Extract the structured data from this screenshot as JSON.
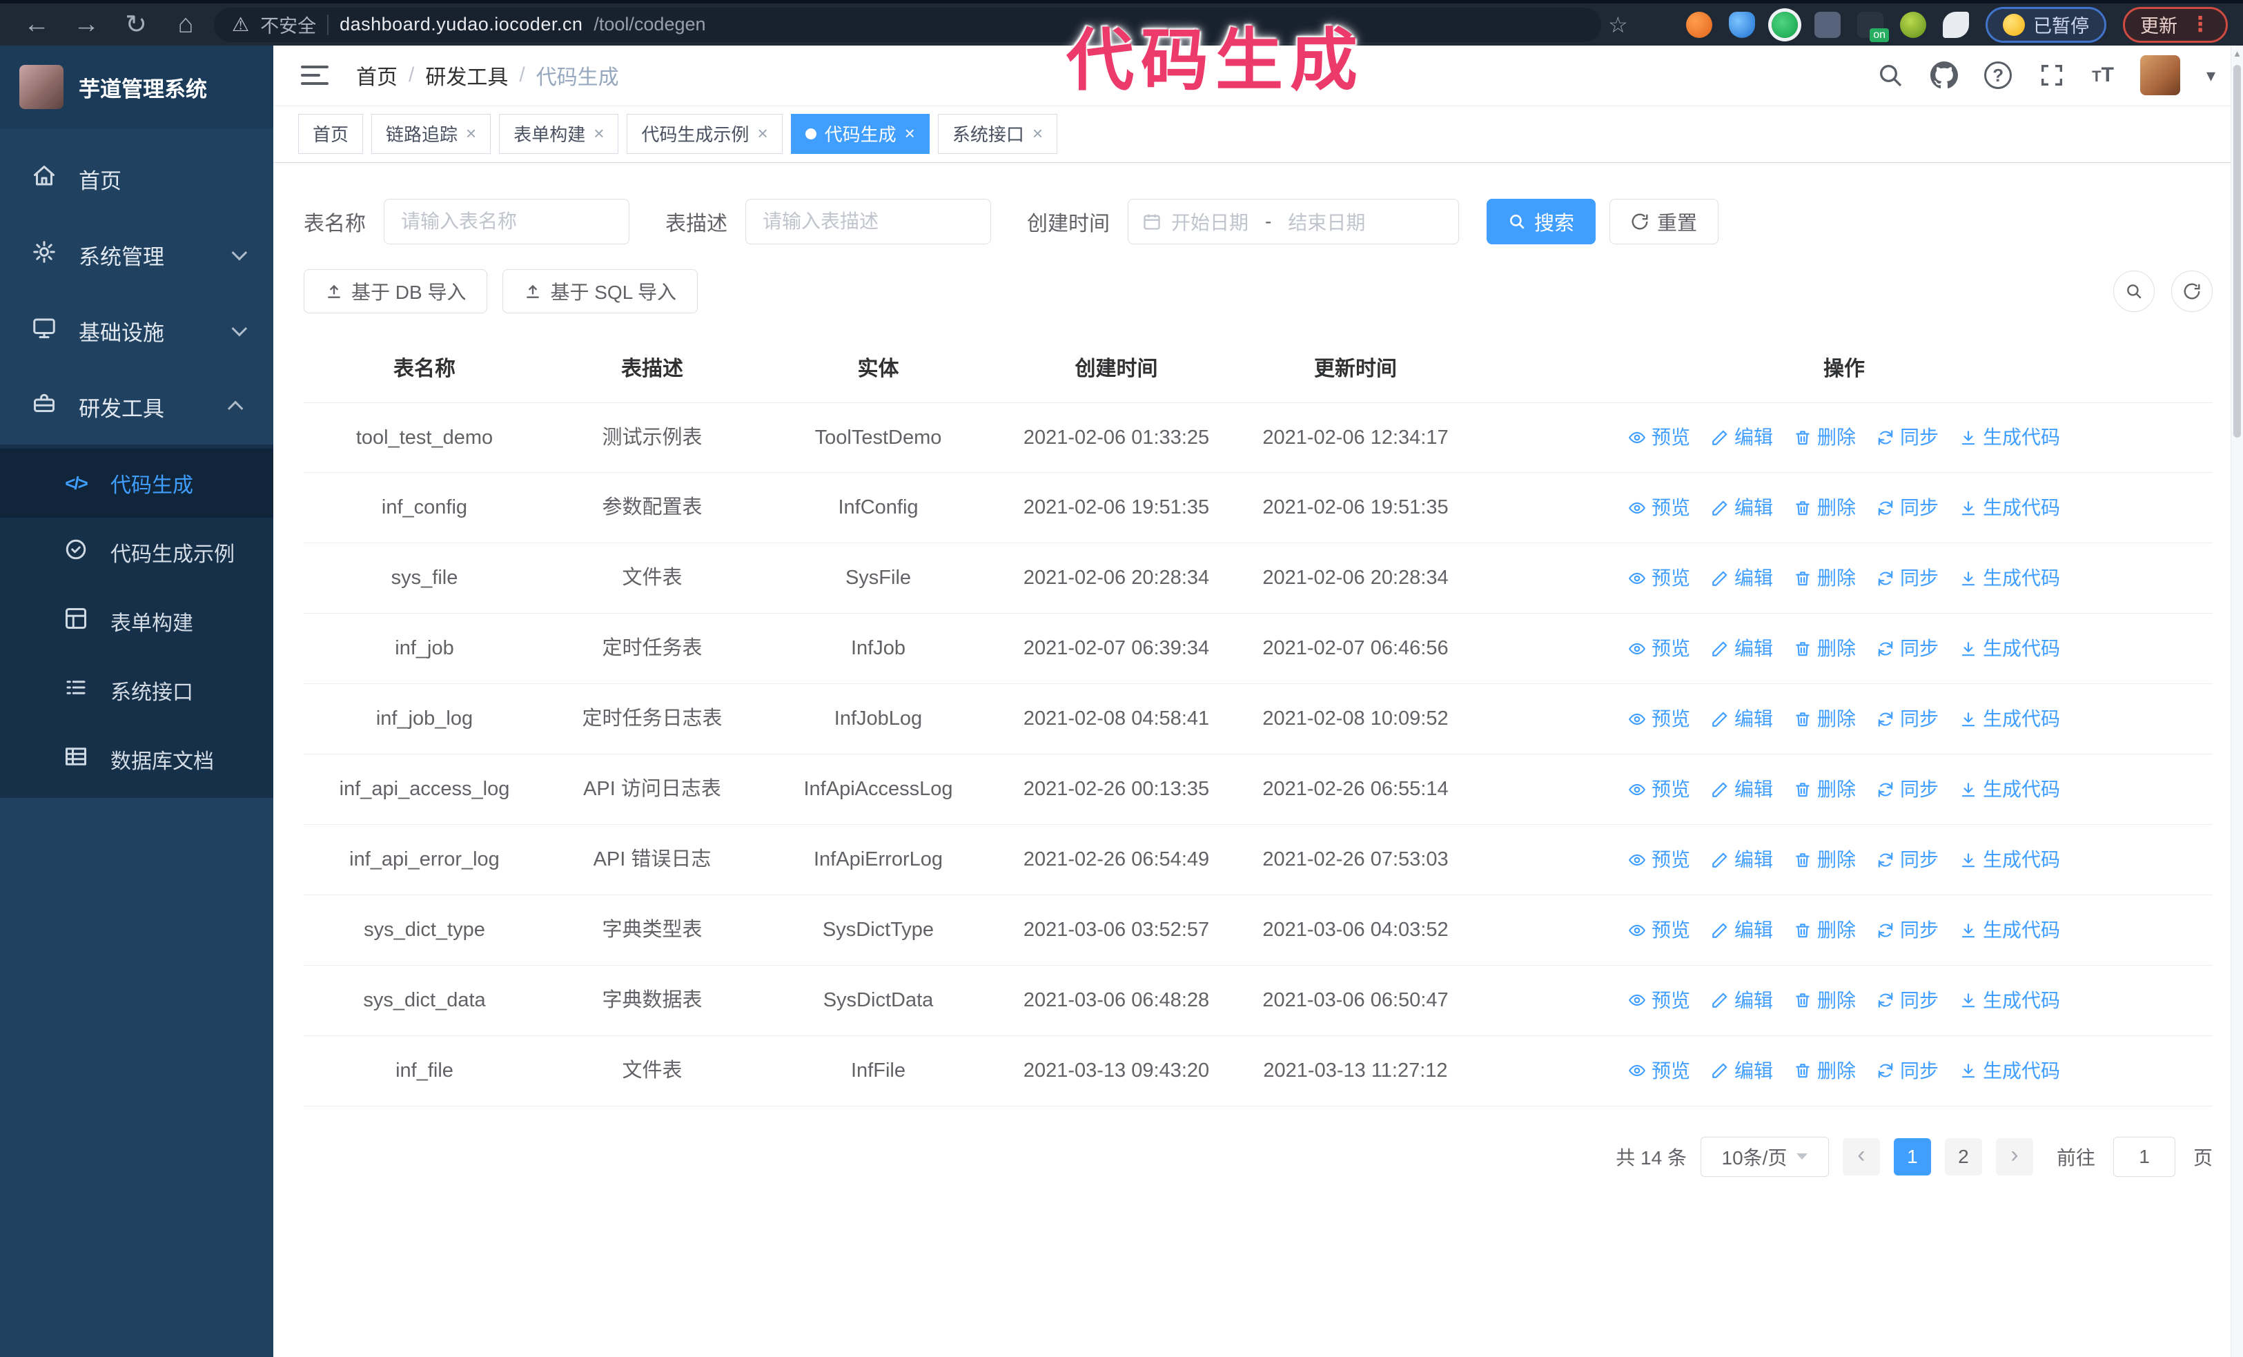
{
  "colors": {
    "accent": "#409eff",
    "sidebar_bg": "#20415f",
    "submenu_bg": "#16304a",
    "annotation_pink": "#ec3a6a",
    "chrome_bg": "#1f2936"
  },
  "browser": {
    "security_label": "不安全",
    "url_host": "dashboard.yudao.iocoder.cn",
    "url_path": "/tool/codegen",
    "paused_badge": "已暂停",
    "update_button": "更新"
  },
  "annotation": {
    "text": "代码生成"
  },
  "sidebar": {
    "logo_title": "芋道管理系统",
    "items": [
      {
        "label": "首页",
        "icon": "home-icon",
        "chevron": ""
      },
      {
        "label": "系统管理",
        "icon": "gear-icon",
        "chevron": "down"
      },
      {
        "label": "基础设施",
        "icon": "monitor-icon",
        "chevron": "down"
      },
      {
        "label": "研发工具",
        "icon": "toolbox-icon",
        "chevron": "up"
      }
    ],
    "submenu": [
      {
        "label": "代码生成",
        "icon": "code-icon",
        "active": true
      },
      {
        "label": "代码生成示例",
        "icon": "example-icon",
        "active": false
      },
      {
        "label": "表单构建",
        "icon": "form-icon",
        "active": false
      },
      {
        "label": "系统接口",
        "icon": "api-icon",
        "active": false
      },
      {
        "label": "数据库文档",
        "icon": "database-icon",
        "active": false
      }
    ]
  },
  "header": {
    "breadcrumb": [
      "首页",
      "研发工具",
      "代码生成"
    ]
  },
  "tabs": [
    {
      "label": "首页",
      "closable": false,
      "active": false
    },
    {
      "label": "链路追踪",
      "closable": true,
      "active": false
    },
    {
      "label": "表单构建",
      "closable": true,
      "active": false
    },
    {
      "label": "代码生成示例",
      "closable": true,
      "active": false
    },
    {
      "label": "代码生成",
      "closable": true,
      "active": true
    },
    {
      "label": "系统接口",
      "closable": true,
      "active": false
    }
  ],
  "filters": {
    "table_name_label": "表名称",
    "table_name_placeholder": "请输入表名称",
    "table_desc_label": "表描述",
    "table_desc_placeholder": "请输入表描述",
    "create_time_label": "创建时间",
    "date_start_placeholder": "开始日期",
    "date_separator": "-",
    "date_end_placeholder": "结束日期",
    "search_label": "搜索",
    "reset_label": "重置"
  },
  "toolbar": {
    "import_db_label": "基于 DB 导入",
    "import_sql_label": "基于 SQL 导入"
  },
  "table": {
    "columns": [
      "表名称",
      "表描述",
      "实体",
      "创建时间",
      "更新时间",
      "操作"
    ],
    "actions": [
      {
        "label": "预览",
        "icon": "eye-icon"
      },
      {
        "label": "编辑",
        "icon": "pencil-icon"
      },
      {
        "label": "删除",
        "icon": "trash-icon"
      },
      {
        "label": "同步",
        "icon": "sync-icon"
      },
      {
        "label": "生成代码",
        "icon": "download-icon"
      }
    ],
    "rows": [
      {
        "name": "tool_test_demo",
        "desc": "测试示例表",
        "entity": "ToolTestDemo",
        "created": "2021-02-06 01:33:25",
        "updated": "2021-02-06 12:34:17"
      },
      {
        "name": "inf_config",
        "desc": "参数配置表",
        "entity": "InfConfig",
        "created": "2021-02-06 19:51:35",
        "updated": "2021-02-06 19:51:35"
      },
      {
        "name": "sys_file",
        "desc": "文件表",
        "entity": "SysFile",
        "created": "2021-02-06 20:28:34",
        "updated": "2021-02-06 20:28:34"
      },
      {
        "name": "inf_job",
        "desc": "定时任务表",
        "entity": "InfJob",
        "created": "2021-02-07 06:39:34",
        "updated": "2021-02-07 06:46:56"
      },
      {
        "name": "inf_job_log",
        "desc": "定时任务日志表",
        "entity": "InfJobLog",
        "created": "2021-02-08 04:58:41",
        "updated": "2021-02-08 10:09:52"
      },
      {
        "name": "inf_api_access_log",
        "desc": "API 访问日志表",
        "entity": "InfApiAccessLog",
        "created": "2021-02-26 00:13:35",
        "updated": "2021-02-26 06:55:14"
      },
      {
        "name": "inf_api_error_log",
        "desc": "API 错误日志",
        "entity": "InfApiErrorLog",
        "created": "2021-02-26 06:54:49",
        "updated": "2021-02-26 07:53:03"
      },
      {
        "name": "sys_dict_type",
        "desc": "字典类型表",
        "entity": "SysDictType",
        "created": "2021-03-06 03:52:57",
        "updated": "2021-03-06 04:03:52"
      },
      {
        "name": "sys_dict_data",
        "desc": "字典数据表",
        "entity": "SysDictData",
        "created": "2021-03-06 06:48:28",
        "updated": "2021-03-06 06:50:47"
      },
      {
        "name": "inf_file",
        "desc": "文件表",
        "entity": "InfFile",
        "created": "2021-03-13 09:43:20",
        "updated": "2021-03-13 11:27:12"
      }
    ]
  },
  "pagination": {
    "total_label": "共 14 条",
    "page_size": "10条/页",
    "pages": [
      "1",
      "2"
    ],
    "active_page": "1",
    "goto_label": "前往",
    "goto_value": "1",
    "page_suffix": "页"
  }
}
